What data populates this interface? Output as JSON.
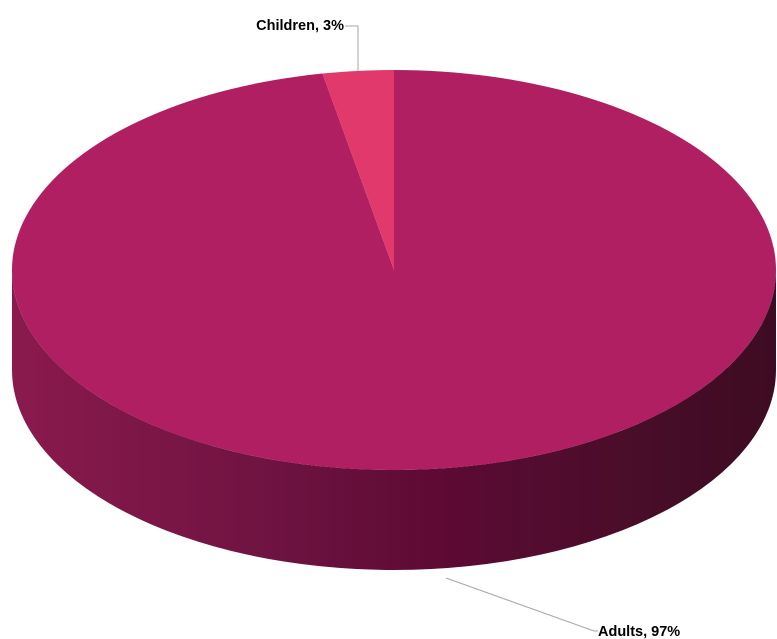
{
  "chart_data": {
    "type": "pie",
    "style": "3d",
    "categories": [
      "Adults",
      "Children"
    ],
    "values": [
      97,
      3
    ],
    "unit": "%",
    "data_labels": [
      "Adults, 97%",
      "Children, 3%"
    ],
    "colors": {
      "Adults": "#b01f62",
      "Children": "#e1396b",
      "side_dark": "#3d0c22",
      "side_mid": "#5e0a35",
      "side_light": "#8a1a4e",
      "leader_line": "#a6a6a6"
    },
    "legend": "none"
  }
}
